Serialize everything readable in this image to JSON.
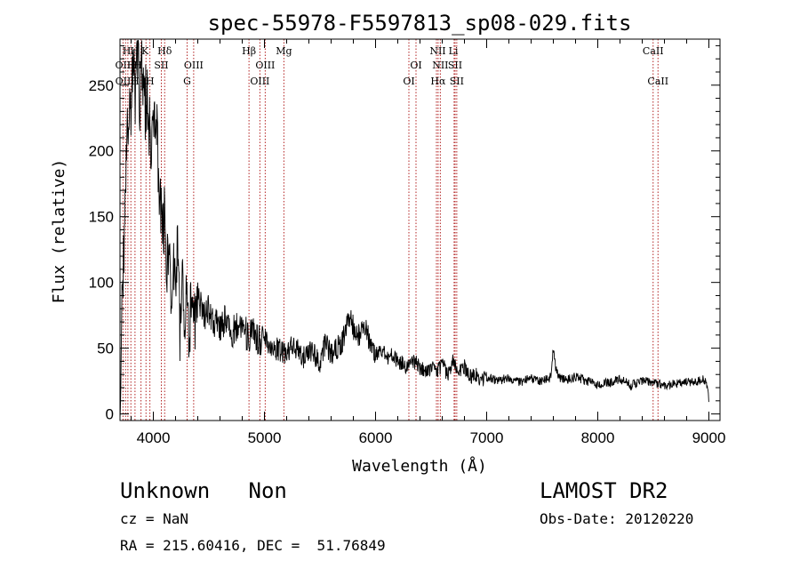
{
  "chart_data": {
    "type": "line",
    "title": "spec-55978-F5597813_sp08-029.fits",
    "xlabel": "Wavelength (Å)",
    "ylabel": "Flux (relative)",
    "xlim": [
      3700,
      9100
    ],
    "ylim": [
      -5,
      285
    ],
    "xticks": [
      4000,
      5000,
      6000,
      7000,
      8000,
      9000
    ],
    "yticks": [
      0,
      50,
      100,
      150,
      200,
      250
    ],
    "grid": false,
    "series": [
      {
        "color": "#000000",
        "x": [
          3700,
          3720,
          3740,
          3760,
          3780,
          3800,
          3820,
          3840,
          3860,
          3880,
          3900,
          3920,
          3940,
          3960,
          3980,
          4000,
          4020,
          4040,
          4060,
          4080,
          4100,
          4120,
          4140,
          4160,
          4180,
          4200,
          4220,
          4240,
          4260,
          4280,
          4300,
          4320,
          4340,
          4360,
          4380,
          4400,
          4450,
          4500,
          4550,
          4600,
          4650,
          4700,
          4750,
          4800,
          4850,
          4900,
          4950,
          5000,
          5050,
          5100,
          5150,
          5200,
          5250,
          5300,
          5350,
          5400,
          5450,
          5500,
          5550,
          5600,
          5650,
          5700,
          5750,
          5780,
          5800,
          5850,
          5900,
          5950,
          6000,
          6050,
          6100,
          6150,
          6200,
          6250,
          6300,
          6350,
          6400,
          6450,
          6500,
          6550,
          6600,
          6650,
          6700,
          6750,
          6800,
          6850,
          6900,
          6950,
          7000,
          7100,
          7200,
          7300,
          7400,
          7500,
          7580,
          7600,
          7620,
          7650,
          7700,
          7800,
          7900,
          8000,
          8100,
          8200,
          8300,
          8400,
          8500,
          8600,
          8700,
          8800,
          8900,
          8950,
          8990,
          9000
        ],
        "y": [
          5,
          85,
          150,
          200,
          240,
          230,
          265,
          245,
          280,
          235,
          270,
          220,
          250,
          230,
          195,
          230,
          215,
          200,
          160,
          140,
          150,
          110,
          130,
          85,
          120,
          95,
          130,
          60,
          115,
          70,
          100,
          45,
          95,
          80,
          65,
          95,
          75,
          80,
          70,
          65,
          75,
          60,
          65,
          70,
          58,
          60,
          55,
          60,
          52,
          50,
          48,
          45,
          52,
          48,
          42,
          50,
          45,
          40,
          55,
          45,
          50,
          55,
          70,
          75,
          65,
          60,
          68,
          55,
          45,
          50,
          42,
          45,
          40,
          38,
          35,
          40,
          35,
          32,
          35,
          32,
          38,
          30,
          40,
          34,
          36,
          28,
          30,
          26,
          28,
          25,
          28,
          24,
          27,
          25,
          28,
          50,
          35,
          28,
          26,
          28,
          25,
          22,
          24,
          26,
          22,
          25,
          24,
          22,
          23,
          24,
          25,
          27,
          20,
          10
        ]
      }
    ],
    "lines": [
      {
        "wavelength": 3727,
        "label": "OII"
      },
      {
        "wavelength": 3750,
        "label": "OIII"
      },
      {
        "wavelength": 3771,
        "label": "H"
      },
      {
        "wavelength": 3798,
        "label": "H"
      },
      {
        "wavelength": 3835,
        "label": "H"
      },
      {
        "wavelength": 3889,
        "label": "H"
      },
      {
        "wavelength": 3934,
        "label": "K"
      },
      {
        "wavelength": 3969,
        "label": "H"
      },
      {
        "wavelength": 4072,
        "label": "SII"
      },
      {
        "wavelength": 4102,
        "label": "Hδ"
      },
      {
        "wavelength": 4304,
        "label": "G"
      },
      {
        "wavelength": 4363,
        "label": "OIII"
      },
      {
        "wavelength": 4861,
        "label": "Hβ"
      },
      {
        "wavelength": 4959,
        "label": "OIII"
      },
      {
        "wavelength": 5007,
        "label": "OIII"
      },
      {
        "wavelength": 5175,
        "label": "Mg"
      },
      {
        "wavelength": 6300,
        "label": "OI"
      },
      {
        "wavelength": 6364,
        "label": "OI"
      },
      {
        "wavelength": 6548,
        "label": "NII"
      },
      {
        "wavelength": 6563,
        "label": "Hα"
      },
      {
        "wavelength": 6583,
        "label": "NII"
      },
      {
        "wavelength": 6707,
        "label": "Li"
      },
      {
        "wavelength": 6716,
        "label": "SII"
      },
      {
        "wavelength": 6731,
        "label": "SII"
      },
      {
        "wavelength": 8498,
        "label": "CaII"
      },
      {
        "wavelength": 8542,
        "label": "CaII"
      }
    ],
    "line_labels_row1": [
      {
        "text": "H",
        "x": 3760
      },
      {
        "text": "H",
        "x": 3830
      },
      {
        "text": "K",
        "x": 3925
      },
      {
        "text": "Hδ",
        "x": 4102
      },
      {
        "text": "Hβ",
        "x": 4861
      },
      {
        "text": "Mg",
        "x": 5175
      },
      {
        "text": "NII",
        "x": 6560
      },
      {
        "text": "Li",
        "x": 6700
      },
      {
        "text": "CaII",
        "x": 8498
      }
    ],
    "line_labels_row2": [
      {
        "text": "OII",
        "x": 3727
      },
      {
        "text": "H",
        "x": 3800
      },
      {
        "text": "H",
        "x": 3860
      },
      {
        "text": "SII",
        "x": 4072
      },
      {
        "text": "OIII",
        "x": 4363
      },
      {
        "text": "OIII",
        "x": 5007
      },
      {
        "text": "OI",
        "x": 6364
      },
      {
        "text": "NII",
        "x": 6583
      },
      {
        "text": "SII",
        "x": 6716
      }
    ],
    "line_labels_row3": [
      {
        "text": "OIII",
        "x": 3745
      },
      {
        "text": "H",
        "x": 3835
      },
      {
        "text": "H",
        "x": 3970
      },
      {
        "text": "G",
        "x": 4304
      },
      {
        "text": "OIII",
        "x": 4959
      },
      {
        "text": "OI",
        "x": 6300
      },
      {
        "text": "Hα",
        "x": 6563
      },
      {
        "text": "SII",
        "x": 6731
      },
      {
        "text": "CaII",
        "x": 8542
      }
    ]
  },
  "info": {
    "class_text": "Unknown   Non",
    "survey": "LAMOST DR2",
    "cz": "cz = NaN",
    "obs_date": "Obs-Date: 20120220",
    "radec": "RA = 215.60416, DEC =  51.76849"
  }
}
